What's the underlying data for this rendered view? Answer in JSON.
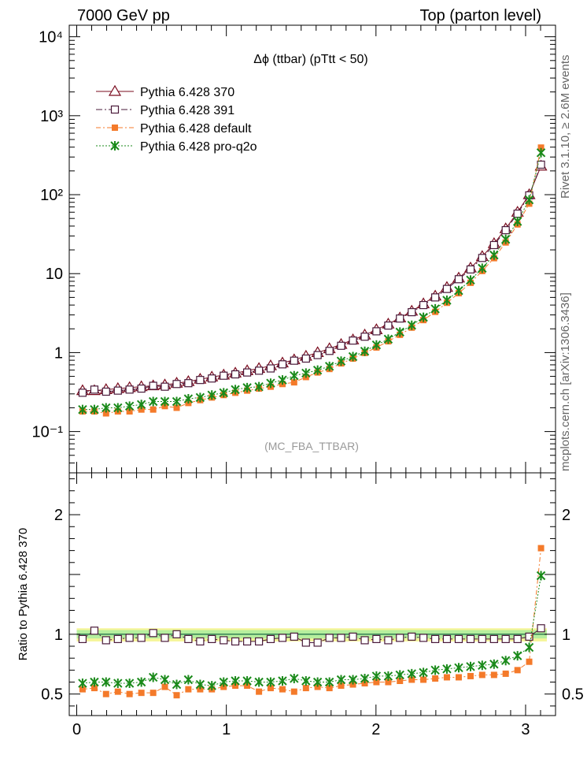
{
  "header": {
    "left": "7000 GeV pp",
    "right": "Top (parton level)"
  },
  "side_labels": {
    "rivet": "Rivet 3.1.10, ≥ 2.6M events",
    "mcplots": "mcplots.cern.ch [arXiv:1306.3436]"
  },
  "chart_data": [
    {
      "type": "line",
      "title": "Δϕ (ttbar) (pTtt < 50)",
      "watermark": "(MC_FBA_TTBAR)",
      "yscale": "log",
      "ylim": [
        0.03,
        14000
      ],
      "xlim": [
        -0.05,
        3.2
      ],
      "y_ticks": [
        "10⁻¹",
        "1",
        "10",
        "10²",
        "10³",
        "10⁴"
      ],
      "legend_position": "top-left",
      "x": [
        0.039,
        0.118,
        0.196,
        0.275,
        0.353,
        0.432,
        0.511,
        0.589,
        0.668,
        0.746,
        0.825,
        0.903,
        0.982,
        1.06,
        1.139,
        1.218,
        1.296,
        1.375,
        1.453,
        1.532,
        1.61,
        1.689,
        1.767,
        1.846,
        1.925,
        2.003,
        2.082,
        2.16,
        2.239,
        2.317,
        2.396,
        2.474,
        2.553,
        2.632,
        2.71,
        2.789,
        2.867,
        2.946,
        3.024,
        3.103
      ],
      "series": [
        {
          "name": "Pythia 6.428 370",
          "color": "#7a0b1e",
          "marker": "triangle-open",
          "dash": "",
          "values": [
            0.33,
            0.33,
            0.34,
            0.35,
            0.36,
            0.37,
            0.38,
            0.39,
            0.41,
            0.43,
            0.46,
            0.49,
            0.52,
            0.55,
            0.59,
            0.63,
            0.68,
            0.74,
            0.81,
            0.9,
            1.0,
            1.12,
            1.27,
            1.45,
            1.67,
            1.95,
            2.3,
            2.75,
            3.35,
            4.15,
            5.2,
            6.7,
            8.8,
            11.8,
            16.5,
            24,
            37,
            60,
            100,
            230
          ]
        },
        {
          "name": "Pythia 6.428 391",
          "color": "#4a1a3a",
          "marker": "square-open",
          "dash": "8,3,2,3",
          "values": [
            0.31,
            0.34,
            0.32,
            0.33,
            0.34,
            0.35,
            0.38,
            0.37,
            0.4,
            0.41,
            0.45,
            0.47,
            0.51,
            0.53,
            0.56,
            0.59,
            0.63,
            0.71,
            0.79,
            0.84,
            0.93,
            1.05,
            1.22,
            1.42,
            1.59,
            1.86,
            2.2,
            2.7,
            3.25,
            4.0,
            5.0,
            6.4,
            8.5,
            11.3,
            15.8,
            23,
            35.5,
            57.5,
            98,
            240
          ]
        },
        {
          "name": "Pythia 6.428 default",
          "color": "#f47a2a",
          "marker": "square-filled",
          "dash": "6,3,2,3",
          "values": [
            0.18,
            0.18,
            0.17,
            0.18,
            0.18,
            0.19,
            0.19,
            0.21,
            0.2,
            0.23,
            0.25,
            0.27,
            0.29,
            0.31,
            0.33,
            0.35,
            0.37,
            0.4,
            0.42,
            0.49,
            0.56,
            0.62,
            0.73,
            0.84,
            0.99,
            1.16,
            1.39,
            1.68,
            2.07,
            2.58,
            3.28,
            4.27,
            5.65,
            7.65,
            10.8,
            15.7,
            24.8,
            42,
            77,
            395
          ]
        },
        {
          "name": "Pythia 6.428 pro-q2o",
          "color": "#1a8a1a",
          "marker": "star",
          "dash": "2,2",
          "values": [
            0.19,
            0.19,
            0.2,
            0.2,
            0.21,
            0.22,
            0.24,
            0.24,
            0.24,
            0.26,
            0.27,
            0.29,
            0.31,
            0.34,
            0.36,
            0.37,
            0.41,
            0.45,
            0.51,
            0.55,
            0.6,
            0.67,
            0.78,
            0.89,
            1.04,
            1.25,
            1.48,
            1.82,
            2.22,
            2.8,
            3.58,
            4.6,
            6.1,
            8.3,
            11.7,
            17.2,
            27.2,
            45.8,
            86,
            340
          ]
        }
      ]
    },
    {
      "type": "line",
      "ylabel": "Ratio to Pythia 6.428 370",
      "ylim": [
        0.32,
        2.35
      ],
      "xlim": [
        -0.05,
        3.2
      ],
      "y_ticks": [
        "0.5",
        "1",
        "2"
      ],
      "x_ticks": [
        "0",
        "1",
        "2",
        "3"
      ],
      "reference_band": "uncertainty band (yellow / green) around 1",
      "x": [
        0.039,
        0.118,
        0.196,
        0.275,
        0.353,
        0.432,
        0.511,
        0.589,
        0.668,
        0.746,
        0.825,
        0.903,
        0.982,
        1.06,
        1.139,
        1.218,
        1.296,
        1.375,
        1.453,
        1.532,
        1.61,
        1.689,
        1.767,
        1.846,
        1.925,
        2.003,
        2.082,
        2.16,
        2.239,
        2.317,
        2.396,
        2.474,
        2.553,
        2.632,
        2.71,
        2.789,
        2.867,
        2.946,
        3.024,
        3.103
      ],
      "series": [
        {
          "name": "Pythia 6.428 391",
          "color": "#4a1a3a",
          "marker": "square-open",
          "dash": "8,3,2,3",
          "values": [
            0.96,
            1.03,
            0.95,
            0.96,
            0.97,
            0.97,
            1.01,
            0.97,
            1.0,
            0.96,
            0.94,
            0.96,
            0.95,
            0.94,
            0.94,
            0.94,
            0.96,
            0.97,
            0.98,
            0.93,
            0.93,
            0.97,
            0.97,
            0.98,
            0.95,
            0.96,
            0.95,
            0.97,
            0.98,
            0.97,
            0.96,
            0.96,
            0.96,
            0.96,
            0.96,
            0.96,
            0.96,
            0.96,
            0.98,
            1.05
          ]
        },
        {
          "name": "Pythia 6.428 default",
          "color": "#f47a2a",
          "marker": "square-filled",
          "dash": "6,3,2,3",
          "values": [
            0.54,
            0.55,
            0.5,
            0.52,
            0.5,
            0.51,
            0.51,
            0.56,
            0.49,
            0.54,
            0.54,
            0.54,
            0.56,
            0.57,
            0.57,
            0.52,
            0.55,
            0.54,
            0.52,
            0.55,
            0.56,
            0.55,
            0.57,
            0.58,
            0.59,
            0.6,
            0.6,
            0.61,
            0.62,
            0.62,
            0.63,
            0.64,
            0.64,
            0.65,
            0.66,
            0.66,
            0.67,
            0.7,
            0.77,
            1.72
          ]
        },
        {
          "name": "Pythia 6.428 pro-q2o",
          "color": "#1a8a1a",
          "marker": "star",
          "dash": "2,2",
          "values": [
            0.59,
            0.6,
            0.6,
            0.59,
            0.59,
            0.6,
            0.64,
            0.62,
            0.58,
            0.62,
            0.58,
            0.57,
            0.6,
            0.61,
            0.61,
            0.6,
            0.6,
            0.61,
            0.63,
            0.61,
            0.6,
            0.6,
            0.62,
            0.62,
            0.63,
            0.65,
            0.65,
            0.66,
            0.67,
            0.68,
            0.7,
            0.71,
            0.72,
            0.73,
            0.74,
            0.75,
            0.78,
            0.82,
            0.89,
            1.49
          ]
        }
      ]
    }
  ]
}
